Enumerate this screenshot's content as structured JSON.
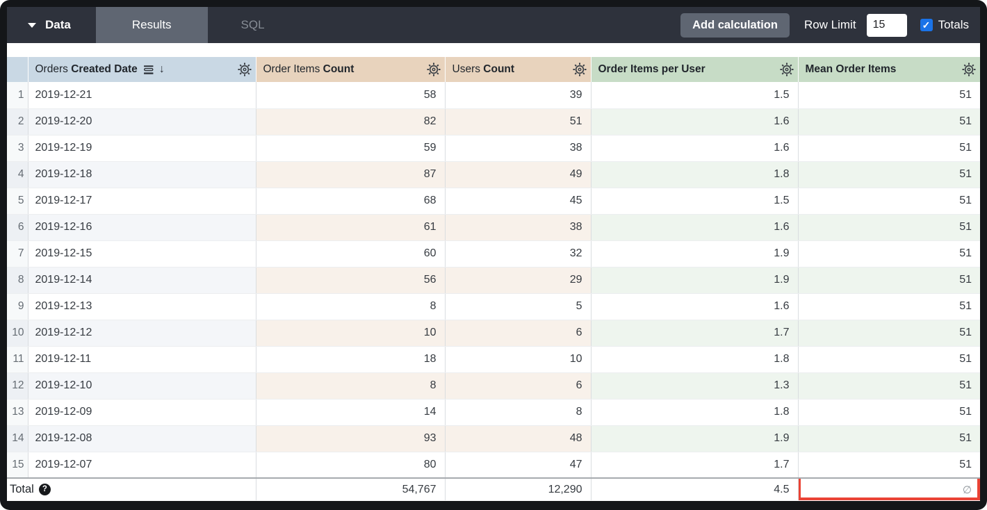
{
  "toolbar": {
    "data_label": "Data",
    "tabs": [
      {
        "label": "Results",
        "active": true
      },
      {
        "label": "SQL",
        "active": false
      }
    ],
    "add_calculation_label": "Add calculation",
    "row_limit_label": "Row Limit",
    "row_limit_value": "15",
    "totals_label": "Totals",
    "totals_checked": true
  },
  "table": {
    "columns": [
      {
        "label_regular": "Orders ",
        "label_bold": "Created Date",
        "type": "dimension",
        "sorted_desc": true
      },
      {
        "label_regular": "Order Items ",
        "label_bold": "Count",
        "type": "measure"
      },
      {
        "label_regular": "Users ",
        "label_bold": "Count",
        "type": "measure"
      },
      {
        "label_regular": "",
        "label_bold": "Order Items per User",
        "type": "table_calculation"
      },
      {
        "label_regular": "",
        "label_bold": "Mean Order Items",
        "type": "table_calculation"
      }
    ],
    "rows": [
      {
        "num": "1",
        "date": "2019-12-21",
        "oic": "58",
        "uc": "39",
        "oipu": "1.5",
        "moi": "51"
      },
      {
        "num": "2",
        "date": "2019-12-20",
        "oic": "82",
        "uc": "51",
        "oipu": "1.6",
        "moi": "51"
      },
      {
        "num": "3",
        "date": "2019-12-19",
        "oic": "59",
        "uc": "38",
        "oipu": "1.6",
        "moi": "51"
      },
      {
        "num": "4",
        "date": "2019-12-18",
        "oic": "87",
        "uc": "49",
        "oipu": "1.8",
        "moi": "51"
      },
      {
        "num": "5",
        "date": "2019-12-17",
        "oic": "68",
        "uc": "45",
        "oipu": "1.5",
        "moi": "51"
      },
      {
        "num": "6",
        "date": "2019-12-16",
        "oic": "61",
        "uc": "38",
        "oipu": "1.6",
        "moi": "51"
      },
      {
        "num": "7",
        "date": "2019-12-15",
        "oic": "60",
        "uc": "32",
        "oipu": "1.9",
        "moi": "51"
      },
      {
        "num": "8",
        "date": "2019-12-14",
        "oic": "56",
        "uc": "29",
        "oipu": "1.9",
        "moi": "51"
      },
      {
        "num": "9",
        "date": "2019-12-13",
        "oic": "8",
        "uc": "5",
        "oipu": "1.6",
        "moi": "51"
      },
      {
        "num": "10",
        "date": "2019-12-12",
        "oic": "10",
        "uc": "6",
        "oipu": "1.7",
        "moi": "51"
      },
      {
        "num": "11",
        "date": "2019-12-11",
        "oic": "18",
        "uc": "10",
        "oipu": "1.8",
        "moi": "51"
      },
      {
        "num": "12",
        "date": "2019-12-10",
        "oic": "8",
        "uc": "6",
        "oipu": "1.3",
        "moi": "51"
      },
      {
        "num": "13",
        "date": "2019-12-09",
        "oic": "14",
        "uc": "8",
        "oipu": "1.8",
        "moi": "51"
      },
      {
        "num": "14",
        "date": "2019-12-08",
        "oic": "93",
        "uc": "48",
        "oipu": "1.9",
        "moi": "51"
      },
      {
        "num": "15",
        "date": "2019-12-07",
        "oic": "80",
        "uc": "47",
        "oipu": "1.7",
        "moi": "51"
      }
    ],
    "total": {
      "label": "Total",
      "oic": "54,767",
      "uc": "12,290",
      "oipu": "4.5",
      "moi": "∅"
    }
  },
  "colors": {
    "topbar_bg": "#2e323c",
    "active_tab_bg": "#5f6672",
    "dimension_header_bg": "#c9d8e4",
    "measure_header_bg": "#e8d3bd",
    "calculation_header_bg": "#c7dcc6",
    "checkbox_blue": "#1a73e8",
    "highlight_red": "#ea4335"
  }
}
